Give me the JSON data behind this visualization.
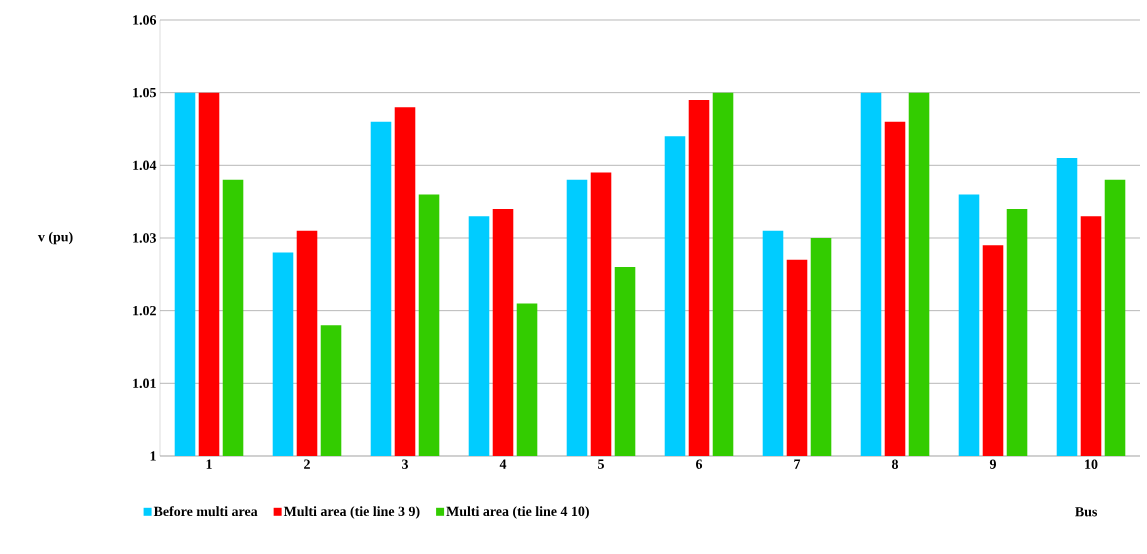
{
  "chart_data": {
    "type": "bar",
    "xlabel": "Bus",
    "ylabel": "v (pu)",
    "categories": [
      "1",
      "2",
      "3",
      "4",
      "5",
      "6",
      "7",
      "8",
      "9",
      "10"
    ],
    "series": [
      {
        "name": "Before multi area",
        "color": "#00ccff",
        "values": [
          1.05,
          1.028,
          1.046,
          1.033,
          1.038,
          1.044,
          1.031,
          1.05,
          1.036,
          1.041
        ]
      },
      {
        "name": "Multi area (tie line 3 9)",
        "color": "#ff0000",
        "values": [
          1.05,
          1.031,
          1.048,
          1.034,
          1.039,
          1.049,
          1.027,
          1.046,
          1.029,
          1.033
        ]
      },
      {
        "name": "Multi area (tie line 4 10)",
        "color": "#33cc00",
        "values": [
          1.038,
          1.018,
          1.036,
          1.021,
          1.026,
          1.05,
          1.03,
          1.05,
          1.034,
          1.038
        ]
      }
    ],
    "ylim": [
      1,
      1.06
    ],
    "yticks": [
      1,
      1.01,
      1.02,
      1.03,
      1.04,
      1.05,
      1.06
    ],
    "grid": "y",
    "legend": "bottom"
  }
}
